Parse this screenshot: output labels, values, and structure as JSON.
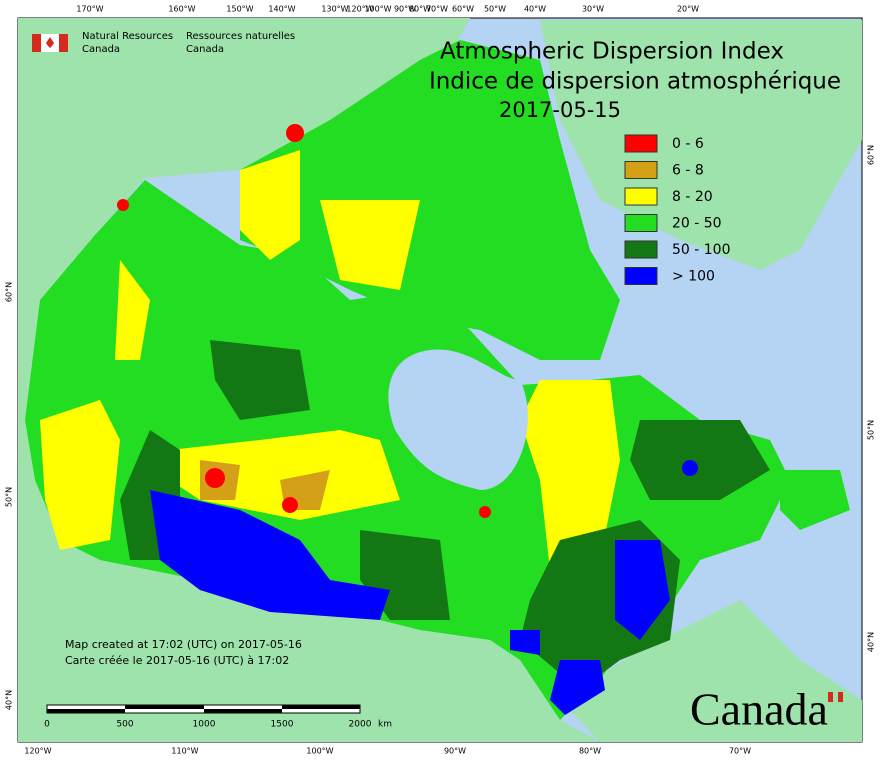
{
  "header": {
    "agency_en": "Natural Resources",
    "agency_en_2": "Canada",
    "agency_fr": "Ressources naturelles",
    "agency_fr_2": "Canada"
  },
  "title": {
    "line1": "Atmospheric Dispersion Index",
    "line2": "Indice de dispersion atmosphérique",
    "date": "2017-05-15"
  },
  "legend": [
    {
      "label": "0 - 6",
      "color": "#ff0000"
    },
    {
      "label": "6 - 8",
      "color": "#d4a017"
    },
    {
      "label": "8 - 20",
      "color": "#ffff00"
    },
    {
      "label": "20 - 50",
      "color": "#22dd22"
    },
    {
      "label": "50 - 100",
      "color": "#137813"
    },
    {
      "label": "> 100",
      "color": "#0000ff"
    }
  ],
  "graticule": {
    "top": [
      "170°W",
      "160°W",
      "150°W",
      "140°W",
      "130°W",
      "120°W",
      "100°W",
      "90°W",
      "80°W",
      "70°W",
      "60°W",
      "50°W",
      "40°W",
      "30°W",
      "20°W"
    ],
    "bottom": [
      "120°W",
      "110°W",
      "100°W",
      "90°W",
      "80°W",
      "70°W"
    ],
    "left": [
      "60°N",
      "50°N",
      "40°N"
    ],
    "right": [
      "60°N",
      "50°N",
      "40°N"
    ]
  },
  "credit": {
    "line1": "Map created at 17:02 (UTC) on 2017-05-16",
    "line2": "Carte créée le 2017-05-16 (UTC) à 17:02"
  },
  "scale_bar": {
    "labels": [
      "0",
      "500",
      "1000",
      "1500",
      "2000"
    ],
    "unit": "km"
  },
  "wordmark": "Canada"
}
